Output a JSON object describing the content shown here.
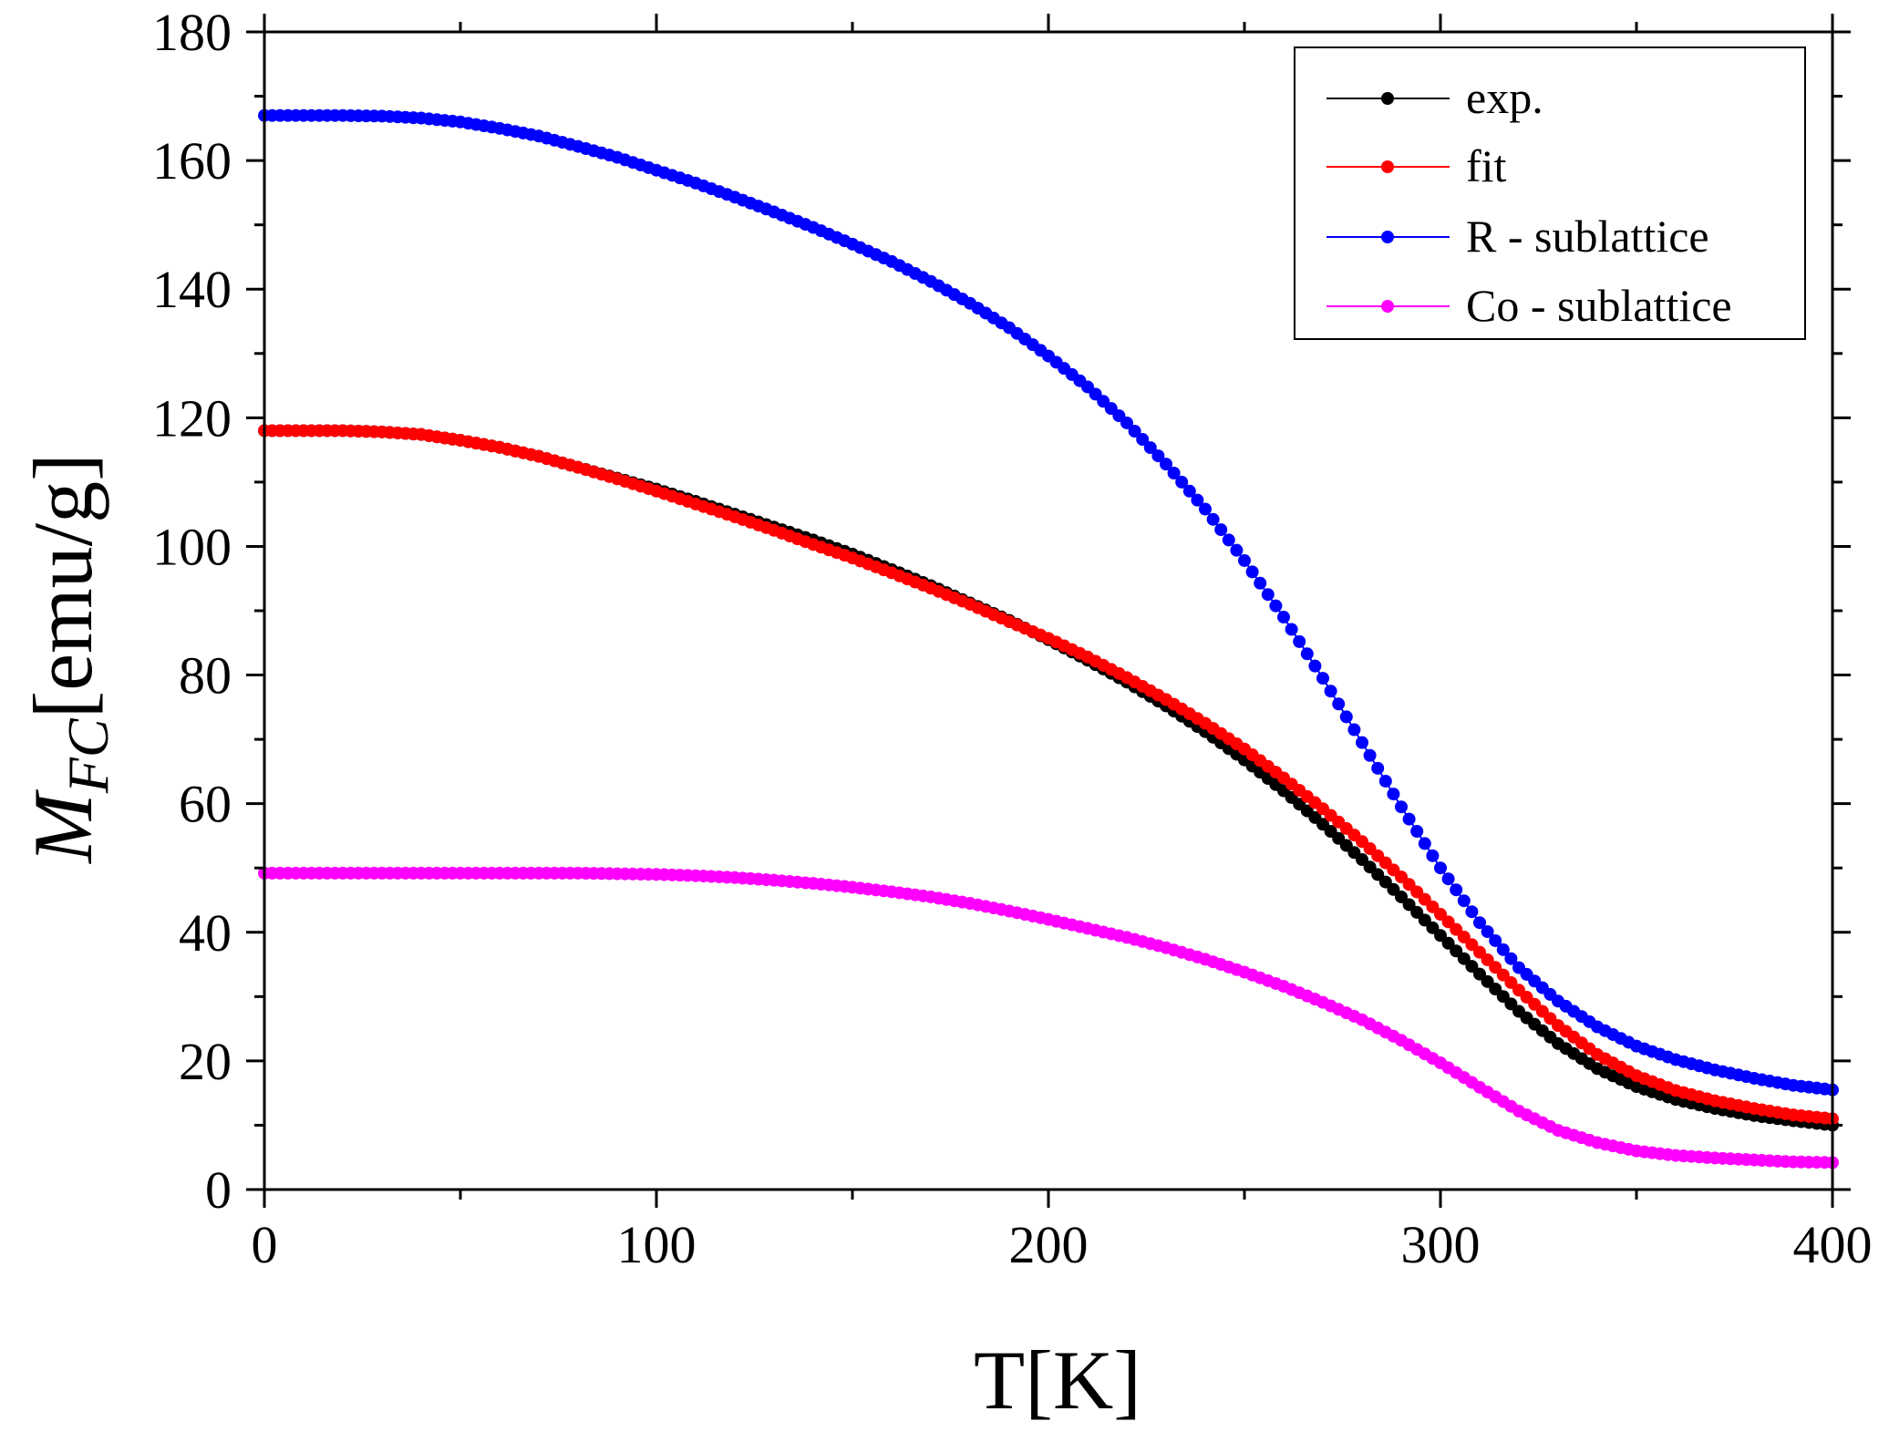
{
  "chart_data": {
    "type": "scatter",
    "title": "",
    "xlabel": "T[K]",
    "ylabel": {
      "main": "M",
      "subscript": "FC",
      "unit": "[emu/g]"
    },
    "xlim": [
      0,
      400
    ],
    "ylim": [
      0,
      180
    ],
    "xticks": [
      0,
      100,
      200,
      300,
      400
    ],
    "yticks": [
      0,
      20,
      40,
      60,
      80,
      100,
      120,
      140,
      160,
      180
    ],
    "grid": false,
    "legend": "top-right",
    "series": [
      {
        "name": "exp.",
        "color": "#000000",
        "x": [
          0,
          10,
          20,
          30,
          40,
          50,
          60,
          70,
          80,
          90,
          100,
          110,
          120,
          130,
          140,
          150,
          160,
          170,
          180,
          190,
          200,
          210,
          220,
          230,
          240,
          250,
          260,
          270,
          280,
          290,
          300,
          310,
          320,
          330,
          340,
          350,
          360,
          370,
          380,
          390,
          400
        ],
        "y": [
          118,
          118,
          118,
          117.8,
          117.4,
          116.5,
          115.4,
          114,
          112.3,
          110.6,
          108.9,
          107,
          105,
          103,
          101,
          98.8,
          96.4,
          93.9,
          91.2,
          88.5,
          85.5,
          82.3,
          78.9,
          75.2,
          71.2,
          66.8,
          62,
          56.8,
          51.3,
          45.5,
          39.5,
          33.5,
          27.7,
          22.7,
          18.8,
          16,
          14,
          12.6,
          11.5,
          10.7,
          10
        ]
      },
      {
        "name": "fit",
        "color": "#ff0000",
        "x": [
          0,
          10,
          20,
          30,
          40,
          50,
          60,
          70,
          80,
          90,
          100,
          110,
          120,
          130,
          140,
          150,
          160,
          170,
          180,
          190,
          200,
          210,
          220,
          230,
          240,
          250,
          260,
          270,
          280,
          290,
          300,
          310,
          320,
          330,
          340,
          350,
          360,
          370,
          380,
          390,
          400
        ],
        "y": [
          118,
          118,
          118,
          117.8,
          117.4,
          116.5,
          115.4,
          114,
          112.3,
          110.5,
          108.6,
          106.6,
          104.6,
          102.5,
          100.3,
          98.2,
          95.9,
          93.5,
          91,
          88.3,
          85.7,
          82.8,
          79.6,
          76.2,
          72.5,
          68.5,
          64,
          59.2,
          54.1,
          48.6,
          42.8,
          36.9,
          31,
          25.5,
          21,
          17.7,
          15.4,
          13.8,
          12.6,
          11.6,
          11
        ]
      },
      {
        "name": "R - sublattice",
        "color": "#0000ff",
        "x": [
          0,
          10,
          20,
          30,
          40,
          50,
          60,
          70,
          80,
          90,
          100,
          110,
          120,
          130,
          140,
          150,
          160,
          170,
          180,
          190,
          200,
          210,
          220,
          230,
          240,
          250,
          260,
          270,
          280,
          290,
          300,
          310,
          320,
          330,
          340,
          350,
          360,
          370,
          380,
          390,
          400
        ],
        "y": [
          167,
          167,
          167,
          166.9,
          166.6,
          166,
          165,
          163.8,
          162.2,
          160.5,
          158.5,
          156.5,
          154.3,
          152,
          149.6,
          147,
          144.3,
          141.2,
          137.8,
          134,
          129.6,
          124.8,
          119.2,
          112.8,
          105.8,
          97.8,
          89,
          79.5,
          69.5,
          59.5,
          50,
          41.5,
          34.5,
          29.3,
          25.3,
          22.3,
          20.2,
          18.6,
          17.3,
          16.2,
          15.5
        ]
      },
      {
        "name": "Co - sublattice",
        "color": "#ff00ff",
        "x": [
          0,
          10,
          20,
          30,
          40,
          50,
          60,
          70,
          80,
          90,
          100,
          110,
          120,
          130,
          140,
          150,
          160,
          170,
          180,
          190,
          200,
          210,
          220,
          230,
          240,
          250,
          260,
          270,
          280,
          290,
          300,
          310,
          320,
          330,
          340,
          350,
          360,
          370,
          380,
          390,
          400
        ],
        "y": [
          49.2,
          49.2,
          49.2,
          49.2,
          49.2,
          49.2,
          49.2,
          49.2,
          49.2,
          49.1,
          49,
          48.8,
          48.5,
          48.1,
          47.6,
          47,
          46.3,
          45.5,
          44.5,
          43.3,
          42,
          40.6,
          39.2,
          37.6,
          35.8,
          33.8,
          31.6,
          29.1,
          26.4,
          23.2,
          19.7,
          15.9,
          12.2,
          9.2,
          7.3,
          6,
          5.3,
          4.9,
          4.6,
          4.3,
          4.2
        ]
      }
    ]
  }
}
